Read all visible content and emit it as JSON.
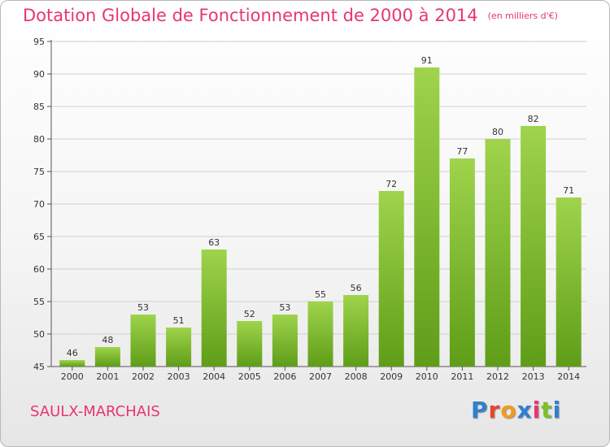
{
  "title": "Dotation Globale de Fonctionnement de 2000 à 2014",
  "title_unit": "(en milliers d'€)",
  "commune": "SAULX-MARCHAIS",
  "logo": {
    "text": "Proxiti",
    "letter_colors": [
      "#2f7fd2",
      "#e8452c",
      "#f29a1d",
      "#2f7fd2",
      "#e8366e",
      "#7cbf2a",
      "#2f7fd2"
    ]
  },
  "colors": {
    "title": "#e8366e",
    "bar_light": "#9fd44c",
    "bar_dark": "#5f9d18",
    "grid": "#cfcfcf"
  },
  "chart_data": {
    "type": "bar",
    "categories": [
      "2000",
      "2001",
      "2002",
      "2003",
      "2004",
      "2005",
      "2006",
      "2007",
      "2008",
      "2009",
      "2010",
      "2011",
      "2012",
      "2013",
      "2014"
    ],
    "values": [
      46,
      48,
      53,
      51,
      63,
      52,
      53,
      55,
      56,
      72,
      91,
      77,
      80,
      82,
      71
    ],
    "ylim": [
      45,
      95
    ],
    "yticks": [
      45,
      50,
      55,
      60,
      65,
      70,
      75,
      80,
      85,
      90,
      95
    ],
    "grid": true,
    "title": "Dotation Globale de Fonctionnement de 2000 à 2014",
    "xlabel": "",
    "ylabel": ""
  }
}
